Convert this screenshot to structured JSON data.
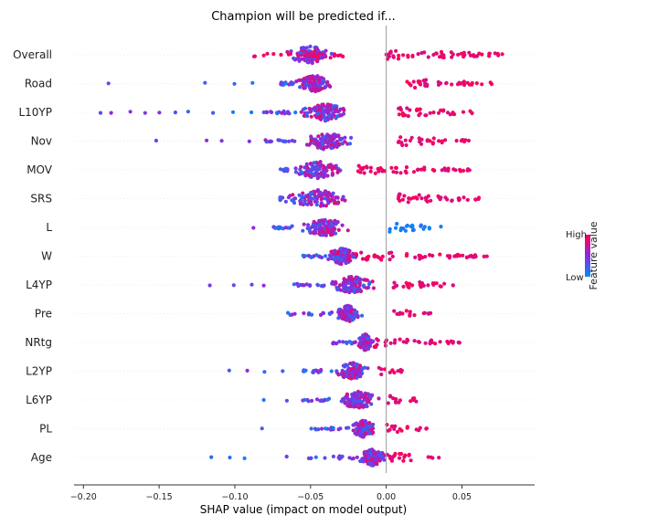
{
  "chart_data": {
    "type": "scatter",
    "subtype": "shap-beeswarm",
    "title": "Champion will be predicted if...",
    "xlabel": "SHAP value (impact on model output)",
    "ylabel": "",
    "xlim": [
      -0.205,
      0.098
    ],
    "xticks": [
      -0.2,
      -0.15,
      -0.1,
      -0.05,
      0.0,
      0.05
    ],
    "xtick_labels": [
      "−0.20",
      "−0.15",
      "−0.10",
      "−0.05",
      "0.00",
      "0.05"
    ],
    "grid": false,
    "colorbar": {
      "high_label": "High",
      "low_label": "Low",
      "label": "Feature value",
      "high_color": "#ff0052",
      "low_color": "#008bfb",
      "mid_color": "#8a2be2"
    },
    "features": [
      {
        "name": "Overall",
        "low": [
          -0.088,
          -0.062,
          -0.03,
          -0.01
        ],
        "mid": [
          -0.075,
          -0.045,
          -0.035
        ],
        "high": [
          0.01,
          0.02,
          0.05,
          0.08
        ],
        "dense": [
          -0.07,
          -0.03
        ],
        "pos": [
          0.0,
          0.085
        ],
        "negclump": [
          -0.088,
          -0.028
        ]
      },
      {
        "name": "Road",
        "dense": [
          -0.06,
          -0.035
        ],
        "neg": [
          -0.182,
          -0.12,
          -0.1,
          -0.09,
          -0.07
        ],
        "pos": [
          0.012,
          0.07
        ]
      },
      {
        "name": "L10YP",
        "dense": [
          -0.06,
          -0.02
        ],
        "neg": [
          -0.19,
          -0.18,
          -0.17,
          -0.16,
          -0.15,
          -0.14,
          -0.13,
          -0.115,
          -0.1,
          -0.09,
          -0.08
        ],
        "pos": [
          0.008,
          0.06
        ]
      },
      {
        "name": "Nov",
        "dense": [
          -0.06,
          -0.02
        ],
        "neg": [
          -0.152,
          -0.12,
          -0.11,
          -0.09,
          -0.08
        ],
        "pos": [
          0.008,
          0.055
        ]
      },
      {
        "name": "MOV",
        "dense": [
          -0.065,
          -0.025
        ],
        "neg": [
          -0.068
        ],
        "pos": [
          -0.02,
          0.058
        ]
      },
      {
        "name": "SRS",
        "dense": [
          -0.07,
          -0.02
        ],
        "neg": [
          -0.07
        ],
        "pos": [
          0.008,
          0.07
        ]
      },
      {
        "name": "L",
        "dense": [
          -0.06,
          -0.02
        ],
        "neg": [
          -0.088,
          -0.075
        ],
        "pos": [
          0.002,
          0.038
        ]
      },
      {
        "name": "W",
        "dense": [
          -0.04,
          -0.018
        ],
        "neg": [
          -0.055
        ],
        "pos": [
          -0.02,
          0.068
        ]
      },
      {
        "name": "L4YP",
        "dense": [
          -0.04,
          -0.005
        ],
        "neg": [
          -0.115,
          -0.1,
          -0.09,
          -0.08,
          -0.06
        ],
        "pos": [
          0.003,
          0.045
        ]
      },
      {
        "name": "Pre",
        "dense": [
          -0.035,
          -0.015
        ],
        "neg": [
          -0.065
        ],
        "pos": [
          0.005,
          0.03
        ]
      },
      {
        "name": "NRtg",
        "dense": [
          -0.02,
          -0.008
        ],
        "neg": [
          -0.036
        ],
        "pos": [
          -0.008,
          0.05
        ]
      },
      {
        "name": "L2YP",
        "dense": [
          -0.035,
          -0.01
        ],
        "neg": [
          -0.105,
          -0.09,
          -0.08,
          -0.07,
          -0.055
        ],
        "pos": [
          -0.005,
          0.012
        ]
      },
      {
        "name": "L6YP",
        "dense": [
          -0.035,
          -0.002
        ],
        "neg": [
          -0.08,
          -0.065,
          -0.055
        ],
        "pos": [
          0.0,
          0.024
        ]
      },
      {
        "name": "PL",
        "dense": [
          -0.025,
          -0.005
        ],
        "neg": [
          -0.083,
          -0.05
        ],
        "pos": [
          0.0,
          0.027
        ]
      },
      {
        "name": "Age",
        "dense": [
          -0.02,
          0.003
        ],
        "neg": [
          -0.117,
          -0.105,
          -0.095,
          -0.065,
          -0.05
        ],
        "pos": [
          0.002,
          0.035
        ]
      }
    ]
  }
}
